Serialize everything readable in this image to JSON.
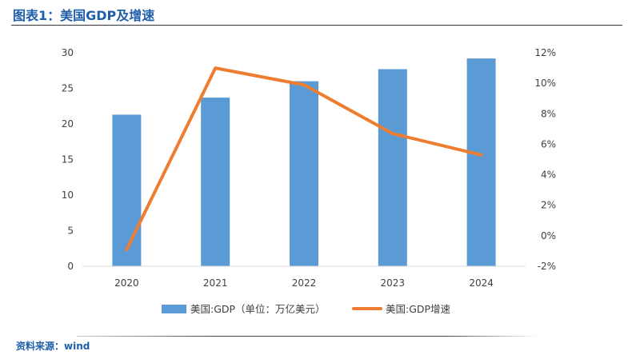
{
  "header": {
    "title": "图表1：美国GDP及增速"
  },
  "footer": {
    "source": "资料来源：wind"
  },
  "colors": {
    "bar": "#5b9bd5",
    "line": "#ed7d31",
    "axis_text": "#404040",
    "title": "#1f5fa8"
  },
  "chart_data": {
    "type": "bar",
    "title": "",
    "categories": [
      "2020",
      "2021",
      "2022",
      "2023",
      "2024"
    ],
    "series": [
      {
        "name": "美国:GDP（单位：万亿美元）",
        "type": "bar",
        "axis": "left",
        "values": [
          21.3,
          23.7,
          26.0,
          27.7,
          29.2
        ]
      },
      {
        "name": "美国:GDP增速",
        "type": "line",
        "axis": "right",
        "values": [
          -0.9,
          11.0,
          9.9,
          6.7,
          5.3
        ]
      }
    ],
    "y_left": {
      "ylim": [
        0,
        30
      ],
      "ticks": [
        0,
        5,
        10,
        15,
        20,
        25,
        30
      ],
      "tick_labels": [
        "0",
        "5",
        "10",
        "15",
        "20",
        "25",
        "30"
      ]
    },
    "y_right": {
      "ylim": [
        -2,
        12
      ],
      "ticks": [
        -2,
        0,
        2,
        4,
        6,
        8,
        10,
        12
      ],
      "tick_labels": [
        "-2%",
        "0%",
        "2%",
        "4%",
        "6%",
        "8%",
        "10%",
        "12%"
      ]
    },
    "xlabel": "",
    "ylabel": "",
    "grid": false,
    "legend": "bottom"
  }
}
